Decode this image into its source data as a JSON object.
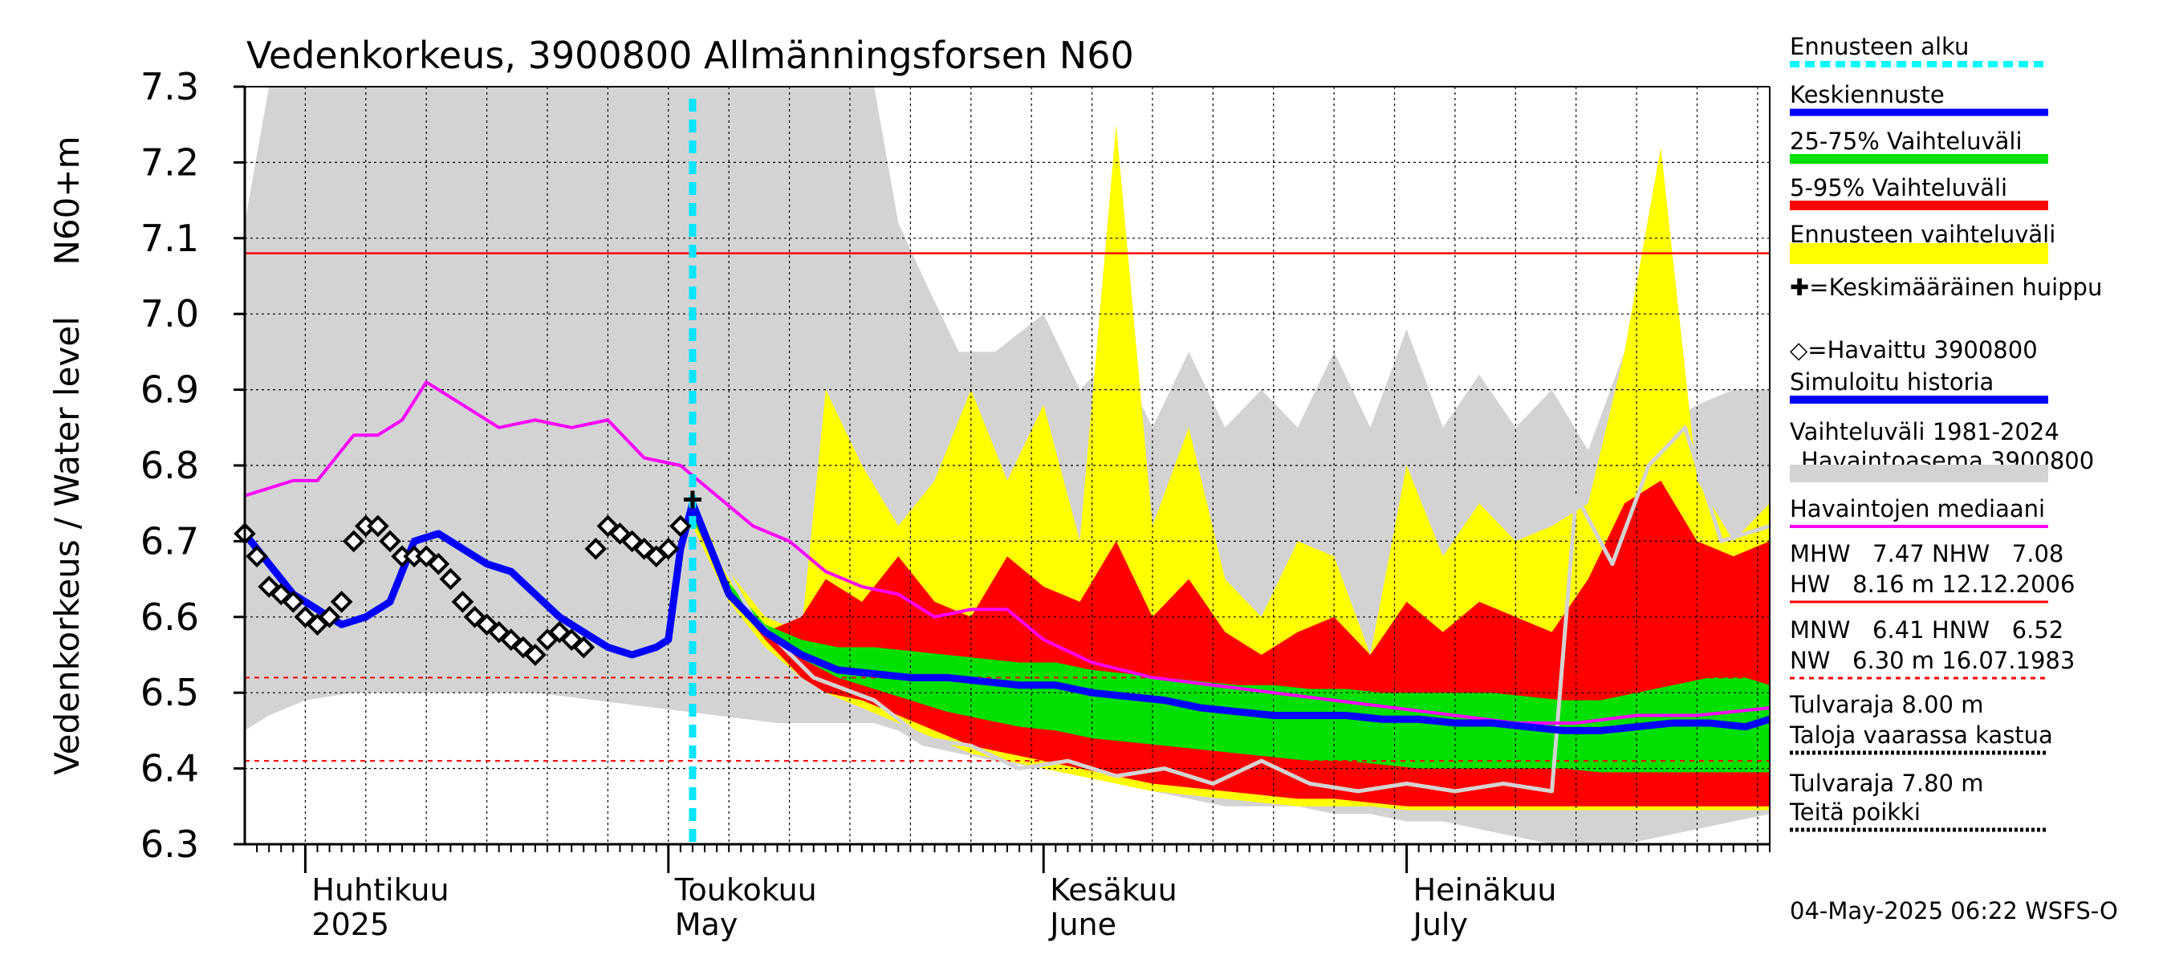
{
  "chart_data": {
    "type": "line",
    "title": "Vedenkorkeus, 3900800 Allmänningsforsen N60",
    "ylabel": "Vedenkorkeus / Water level",
    "yunit": "N60+m",
    "ylim": [
      6.3,
      7.3
    ],
    "yticks": [
      "6.3",
      "6.4",
      "6.5",
      "6.6",
      "6.7",
      "6.8",
      "6.9",
      "7.0",
      "7.1",
      "7.2",
      "7.3"
    ],
    "xlim": [
      "2025-03-27",
      "2025-07-31"
    ],
    "month_labels": [
      {
        "date": "2025-04-01",
        "fi": "Huhtikuu",
        "en": "2025"
      },
      {
        "date": "2025-05-01",
        "fi": "Toukokuu",
        "en": "May"
      },
      {
        "date": "2025-06-01",
        "fi": "Kesäkuu",
        "en": "June"
      },
      {
        "date": "2025-07-01",
        "fi": "Heinäkuu",
        "en": "July"
      }
    ],
    "forecast_start": "2025-05-03",
    "reference_lines": {
      "NHW": 7.08,
      "HNW": 6.52,
      "MNW": 6.41
    },
    "series": [
      {
        "name": "Vaihteluväli 1981-2024 Havaintoasema 3900800",
        "color": "#d3d3d3",
        "kind": "band",
        "x": [
          "2025-03-27",
          "2025-03-29",
          "2025-04-01",
          "2025-04-05",
          "2025-04-10",
          "2025-04-15",
          "2025-04-20",
          "2025-04-25",
          "2025-04-30",
          "2025-05-05",
          "2025-05-10",
          "2025-05-15",
          "2025-05-18",
          "2025-05-20",
          "2025-05-22",
          "2025-05-25",
          "2025-05-28",
          "2025-06-01",
          "2025-06-04",
          "2025-06-07",
          "2025-06-10",
          "2025-06-13",
          "2025-06-16",
          "2025-06-19",
          "2025-06-22",
          "2025-06-25",
          "2025-06-28",
          "2025-07-01",
          "2025-07-04",
          "2025-07-07",
          "2025-07-10",
          "2025-07-13",
          "2025-07-16",
          "2025-07-19",
          "2025-07-22",
          "2025-07-25",
          "2025-07-28",
          "2025-07-31"
        ],
        "upper": [
          7.12,
          7.3,
          7.3,
          7.3,
          7.3,
          7.3,
          7.3,
          7.3,
          7.3,
          7.3,
          7.3,
          7.3,
          7.3,
          7.12,
          7.05,
          6.95,
          6.95,
          7.0,
          6.9,
          6.95,
          6.85,
          6.95,
          6.85,
          6.9,
          6.85,
          6.95,
          6.85,
          6.98,
          6.85,
          6.92,
          6.85,
          6.9,
          6.82,
          6.95,
          6.85,
          6.88,
          6.9,
          6.9
        ],
        "lower": [
          6.45,
          6.47,
          6.49,
          6.5,
          6.5,
          6.5,
          6.5,
          6.49,
          6.48,
          6.47,
          6.46,
          6.46,
          6.46,
          6.45,
          6.43,
          6.42,
          6.41,
          6.4,
          6.39,
          6.38,
          6.37,
          6.36,
          6.35,
          6.35,
          6.35,
          6.34,
          6.34,
          6.33,
          6.33,
          6.32,
          6.31,
          6.3,
          6.3,
          6.3,
          6.31,
          6.32,
          6.33,
          6.34
        ]
      },
      {
        "name": "Ennusteen vaihteluväli",
        "color": "#ffff00",
        "kind": "band",
        "x": [
          "2025-05-03",
          "2025-05-06",
          "2025-05-09",
          "2025-05-12",
          "2025-05-14",
          "2025-05-17",
          "2025-05-20",
          "2025-05-23",
          "2025-05-26",
          "2025-05-29",
          "2025-06-01",
          "2025-06-04",
          "2025-06-07",
          "2025-06-10",
          "2025-06-13",
          "2025-06-16",
          "2025-06-19",
          "2025-06-22",
          "2025-06-25",
          "2025-06-28",
          "2025-07-01",
          "2025-07-04",
          "2025-07-07",
          "2025-07-10",
          "2025-07-13",
          "2025-07-16",
          "2025-07-19",
          "2025-07-22",
          "2025-07-25",
          "2025-07-28",
          "2025-07-31"
        ],
        "upper": [
          6.75,
          6.66,
          6.6,
          6.58,
          6.9,
          6.8,
          6.72,
          6.78,
          6.9,
          6.78,
          6.88,
          6.7,
          7.25,
          6.72,
          6.85,
          6.65,
          6.6,
          6.7,
          6.68,
          6.55,
          6.8,
          6.68,
          6.75,
          6.7,
          6.72,
          6.75,
          6.95,
          7.22,
          6.78,
          6.7,
          6.75
        ],
        "lower": [
          6.72,
          6.62,
          6.56,
          6.52,
          6.5,
          6.48,
          6.46,
          6.44,
          6.42,
          6.41,
          6.4,
          6.39,
          6.38,
          6.37,
          6.365,
          6.36,
          6.355,
          6.35,
          6.35,
          6.35,
          6.345,
          6.345,
          6.345,
          6.345,
          6.345,
          6.345,
          6.345,
          6.345,
          6.345,
          6.345,
          6.345
        ]
      },
      {
        "name": "5-95% Vaihteluväli",
        "color": "#ff0000",
        "kind": "band",
        "x": [
          "2025-05-03",
          "2025-05-06",
          "2025-05-09",
          "2025-05-12",
          "2025-05-14",
          "2025-05-17",
          "2025-05-20",
          "2025-05-23",
          "2025-05-26",
          "2025-05-29",
          "2025-06-01",
          "2025-06-04",
          "2025-06-07",
          "2025-06-10",
          "2025-06-13",
          "2025-06-16",
          "2025-06-19",
          "2025-06-22",
          "2025-06-25",
          "2025-06-28",
          "2025-07-01",
          "2025-07-04",
          "2025-07-07",
          "2025-07-10",
          "2025-07-13",
          "2025-07-16",
          "2025-07-19",
          "2025-07-22",
          "2025-07-25",
          "2025-07-28",
          "2025-07-31"
        ],
        "upper": [
          6.74,
          6.64,
          6.58,
          6.6,
          6.65,
          6.62,
          6.68,
          6.62,
          6.6,
          6.68,
          6.64,
          6.62,
          6.7,
          6.6,
          6.65,
          6.58,
          6.55,
          6.58,
          6.6,
          6.55,
          6.62,
          6.58,
          6.62,
          6.6,
          6.58,
          6.65,
          6.75,
          6.78,
          6.7,
          6.68,
          6.7
        ],
        "lower": [
          6.73,
          6.63,
          6.57,
          6.52,
          6.5,
          6.49,
          6.47,
          6.45,
          6.43,
          6.42,
          6.41,
          6.4,
          6.39,
          6.38,
          6.375,
          6.37,
          6.365,
          6.36,
          6.36,
          6.355,
          6.35,
          6.35,
          6.35,
          6.35,
          6.35,
          6.35,
          6.35,
          6.35,
          6.35,
          6.35,
          6.35
        ]
      },
      {
        "name": "25-75% Vaihteluväli",
        "color": "#00e000",
        "kind": "band",
        "x": [
          "2025-05-03",
          "2025-05-06",
          "2025-05-09",
          "2025-05-12",
          "2025-05-15",
          "2025-05-18",
          "2025-05-21",
          "2025-05-24",
          "2025-05-27",
          "2025-05-30",
          "2025-06-02",
          "2025-06-05",
          "2025-06-08",
          "2025-06-11",
          "2025-06-14",
          "2025-06-17",
          "2025-06-20",
          "2025-06-23",
          "2025-06-26",
          "2025-06-29",
          "2025-07-02",
          "2025-07-05",
          "2025-07-08",
          "2025-07-11",
          "2025-07-14",
          "2025-07-17",
          "2025-07-20",
          "2025-07-23",
          "2025-07-26",
          "2025-07-29",
          "2025-07-31"
        ],
        "upper": [
          6.735,
          6.645,
          6.59,
          6.57,
          6.56,
          6.56,
          6.555,
          6.55,
          6.545,
          6.54,
          6.54,
          6.53,
          6.525,
          6.52,
          6.515,
          6.51,
          6.51,
          6.505,
          6.505,
          6.5,
          6.5,
          6.5,
          6.5,
          6.495,
          6.49,
          6.49,
          6.5,
          6.51,
          6.52,
          6.52,
          6.51
        ],
        "lower": [
          6.73,
          6.635,
          6.58,
          6.545,
          6.52,
          6.505,
          6.49,
          6.475,
          6.465,
          6.455,
          6.45,
          6.44,
          6.435,
          6.43,
          6.425,
          6.42,
          6.415,
          6.41,
          6.41,
          6.405,
          6.4,
          6.4,
          6.4,
          6.4,
          6.4,
          6.395,
          6.395,
          6.395,
          6.395,
          6.395,
          6.395
        ]
      },
      {
        "name": "Simuloitu historia",
        "color": "#d3d3d3",
        "kind": "line",
        "x": [
          "2025-05-03",
          "2025-05-08",
          "2025-05-13",
          "2025-05-18",
          "2025-05-22",
          "2025-05-26",
          "2025-05-30",
          "2025-06-03",
          "2025-06-07",
          "2025-06-11",
          "2025-06-15",
          "2025-06-19",
          "2025-06-23",
          "2025-06-27",
          "2025-07-01",
          "2025-07-05",
          "2025-07-09",
          "2025-07-13",
          "2025-07-15",
          "2025-07-18",
          "2025-07-21",
          "2025-07-24",
          "2025-07-27",
          "2025-07-31"
        ],
        "values": [
          6.74,
          6.6,
          6.52,
          6.49,
          6.44,
          6.43,
          6.4,
          6.41,
          6.39,
          6.4,
          6.38,
          6.41,
          6.38,
          6.37,
          6.38,
          6.37,
          6.38,
          6.37,
          6.76,
          6.67,
          6.8,
          6.85,
          6.7,
          6.72
        ]
      },
      {
        "name": "Havaintojen mediaani",
        "color": "#ff00ff",
        "kind": "line",
        "x": [
          "2025-03-27",
          "2025-03-29",
          "2025-03-31",
          "2025-04-02",
          "2025-04-05",
          "2025-04-07",
          "2025-04-09",
          "2025-04-11",
          "2025-04-14",
          "2025-04-17",
          "2025-04-20",
          "2025-04-23",
          "2025-04-26",
          "2025-04-29",
          "2025-05-02",
          "2025-05-05",
          "2025-05-08",
          "2025-05-11",
          "2025-05-14",
          "2025-05-17",
          "2025-05-20",
          "2025-05-23",
          "2025-05-26",
          "2025-05-29",
          "2025-06-01",
          "2025-06-05",
          "2025-06-10",
          "2025-06-15",
          "2025-06-20",
          "2025-06-25",
          "2025-06-30",
          "2025-07-05",
          "2025-07-10",
          "2025-07-15",
          "2025-07-20",
          "2025-07-25",
          "2025-07-31"
        ],
        "values": [
          6.76,
          6.77,
          6.78,
          6.78,
          6.84,
          6.84,
          6.86,
          6.91,
          6.88,
          6.85,
          6.86,
          6.85,
          6.86,
          6.81,
          6.8,
          6.76,
          6.72,
          6.7,
          6.66,
          6.64,
          6.63,
          6.6,
          6.61,
          6.61,
          6.57,
          6.54,
          6.52,
          6.51,
          6.5,
          6.49,
          6.48,
          6.47,
          6.46,
          6.46,
          6.47,
          6.47,
          6.48
        ]
      },
      {
        "name": "Keskiennuste",
        "color": "#0000ff",
        "kind": "line",
        "x": [
          "2025-03-27",
          "2025-03-29",
          "2025-03-31",
          "2025-04-02",
          "2025-04-04",
          "2025-04-06",
          "2025-04-08",
          "2025-04-10",
          "2025-04-12",
          "2025-04-14",
          "2025-04-16",
          "2025-04-18",
          "2025-04-20",
          "2025-04-22",
          "2025-04-24",
          "2025-04-26",
          "2025-04-28",
          "2025-04-30",
          "2025-05-01",
          "2025-05-02",
          "2025-05-03",
          "2025-05-06",
          "2025-05-09",
          "2025-05-12",
          "2025-05-15",
          "2025-05-18",
          "2025-05-21",
          "2025-05-24",
          "2025-05-27",
          "2025-05-30",
          "2025-06-02",
          "2025-06-05",
          "2025-06-08",
          "2025-06-11",
          "2025-06-14",
          "2025-06-17",
          "2025-06-20",
          "2025-06-23",
          "2025-06-26",
          "2025-06-29",
          "2025-07-02",
          "2025-07-05",
          "2025-07-08",
          "2025-07-11",
          "2025-07-14",
          "2025-07-17",
          "2025-07-20",
          "2025-07-23",
          "2025-07-26",
          "2025-07-29",
          "2025-07-31"
        ],
        "values": [
          6.71,
          6.67,
          6.63,
          6.61,
          6.59,
          6.6,
          6.62,
          6.7,
          6.71,
          6.69,
          6.67,
          6.66,
          6.63,
          6.6,
          6.58,
          6.56,
          6.55,
          6.56,
          6.57,
          6.69,
          6.75,
          6.63,
          6.58,
          6.55,
          6.53,
          6.525,
          6.52,
          6.52,
          6.515,
          6.51,
          6.51,
          6.5,
          6.495,
          6.49,
          6.48,
          6.475,
          6.47,
          6.47,
          6.47,
          6.465,
          6.465,
          6.46,
          6.46,
          6.455,
          6.45,
          6.45,
          6.455,
          6.46,
          6.46,
          6.455,
          6.465
        ]
      },
      {
        "name": "Havaittu 3900800",
        "color": "#000000",
        "kind": "marker",
        "x": [
          "2025-03-27",
          "2025-03-28",
          "2025-03-29",
          "2025-03-30",
          "2025-03-31",
          "2025-04-01",
          "2025-04-02",
          "2025-04-03",
          "2025-04-04",
          "2025-04-05",
          "2025-04-06",
          "2025-04-07",
          "2025-04-08",
          "2025-04-09",
          "2025-04-10",
          "2025-04-11",
          "2025-04-12",
          "2025-04-13",
          "2025-04-14",
          "2025-04-15",
          "2025-04-16",
          "2025-04-17",
          "2025-04-18",
          "2025-04-19",
          "2025-04-20",
          "2025-04-21",
          "2025-04-22",
          "2025-04-23",
          "2025-04-24",
          "2025-04-25",
          "2025-04-26",
          "2025-04-27",
          "2025-04-28",
          "2025-04-29",
          "2025-04-30",
          "2025-05-01",
          "2025-05-02"
        ],
        "values": [
          6.71,
          6.68,
          6.64,
          6.63,
          6.62,
          6.6,
          6.59,
          6.6,
          6.62,
          6.7,
          6.72,
          6.72,
          6.7,
          6.68,
          6.68,
          6.68,
          6.67,
          6.65,
          6.62,
          6.6,
          6.59,
          6.58,
          6.57,
          6.56,
          6.55,
          6.57,
          6.58,
          6.57,
          6.56,
          6.69,
          6.72,
          6.71,
          6.7,
          6.69,
          6.68,
          6.69,
          6.72
        ]
      }
    ],
    "average_peak": {
      "name": "Keskimääräinen huippu",
      "x": "2025-05-03",
      "value": 6.755
    }
  },
  "legend": [
    {
      "label": "Ennusteen alku",
      "color": "#00ffff",
      "style": "dashed"
    },
    {
      "label": "Keskiennuste",
      "color": "#0000ff",
      "style": "solid"
    },
    {
      "label": "25-75% Vaihteluväli",
      "color": "#00e000",
      "style": "solid"
    },
    {
      "label": "5-95% Vaihteluväli",
      "color": "#ff0000",
      "style": "solid"
    },
    {
      "label": "Ennusteen vaihteluväli",
      "color": "#ffff00",
      "style": "solid"
    },
    {
      "label": "✚=Keskimääräinen huippu",
      "color": "#000000",
      "style": "none"
    },
    {
      "label": "◇=Havaittu 3900800",
      "color": "#000000",
      "style": "none"
    },
    {
      "label": "Simuloitu historia",
      "color": "#0000ff",
      "style": "solid"
    },
    {
      "label": "Vaihteluväli 1981-2024 Havaintoasema 3900800",
      "color": "#d3d3d3",
      "style": "solid"
    },
    {
      "label": "Havaintojen mediaani",
      "color": "#ff00ff",
      "style": "solid"
    }
  ],
  "stats": {
    "line1": "MHW   7.47 NHW   7.08",
    "line2": "HW   8.16 m 12.12.2006",
    "line3": "MNW   6.41 HNW   6.52",
    "line4": "NW   6.30 m 16.07.1983"
  },
  "thresholds": {
    "t1a": "Tulvaraja 8.00 m",
    "t1b": "Taloja vaarassa kastua",
    "t2a": "Tulvaraja 7.80 m",
    "t2b": "Teitä poikki"
  },
  "footer": "04-May-2025 06:22 WSFS-O"
}
